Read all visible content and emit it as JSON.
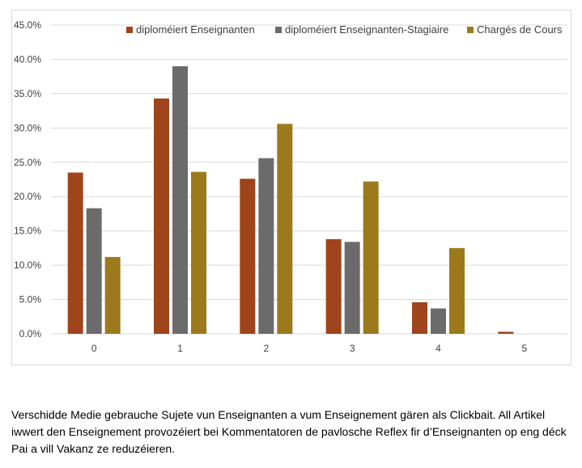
{
  "chart_data": {
    "type": "bar",
    "categories": [
      "0",
      "1",
      "2",
      "3",
      "4",
      "5"
    ],
    "series": [
      {
        "name": "diploméiert Enseignanten",
        "color": "#a0441b",
        "values": [
          23.5,
          34.3,
          22.6,
          13.8,
          4.6,
          0.3
        ]
      },
      {
        "name": "diploméiert Enseignanten-Stagiaire",
        "color": "#6b6b6b",
        "values": [
          18.3,
          39.0,
          25.6,
          13.4,
          3.7,
          0.0
        ]
      },
      {
        "name": "Chargés de Cours",
        "color": "#9c7a1c",
        "values": [
          11.2,
          23.6,
          30.6,
          22.2,
          12.5,
          0.0
        ]
      }
    ],
    "ylim": [
      0,
      45
    ],
    "yticks": [
      0,
      5,
      10,
      15,
      20,
      25,
      30,
      35,
      40,
      45
    ],
    "ytick_labels": [
      "0.0%",
      "5.0%",
      "10.0%",
      "15.0%",
      "20.0%",
      "25.0%",
      "30.0%",
      "35.0%",
      "40.0%",
      "45.0%"
    ],
    "grid": true,
    "legend_position": "top",
    "title": "",
    "xlabel": "",
    "ylabel": ""
  },
  "caption": "Verschidde Medie gebrauche Sujete vun Enseignanten a vum Enseignement gären als Clickbait. All Artikel iwwert den Enseignement provozéiert bei Kommentatoren de pavlosche Reflex fir d’Enseignanten op eng déck Pai a vill Vakanz ze reduzéieren."
}
